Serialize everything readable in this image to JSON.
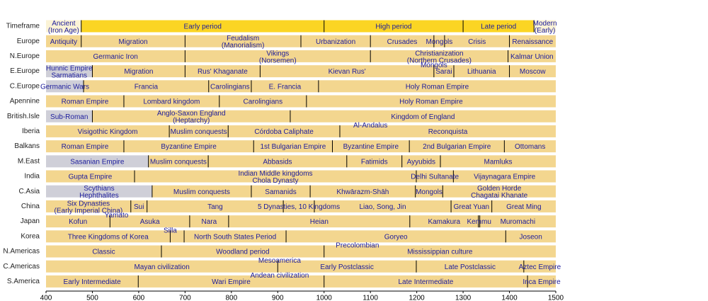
{
  "chart_data": {
    "type": "timeline",
    "xlim": [
      400,
      1500
    ],
    "xticks": [
      400,
      500,
      600,
      700,
      800,
      900,
      1000,
      1100,
      1200,
      1300,
      1400,
      1500
    ],
    "color": "#f3d68f",
    "label_color": "#1c1c9c",
    "rows": [
      {
        "name": "Timeframe",
        "color": "#fbd524",
        "segments": [
          {
            "start": 400,
            "end": 476,
            "label": "Ancient\n(Iron Age)",
            "color": "#fbf3d6"
          },
          {
            "start": 476,
            "end": 1000,
            "label": "Early period"
          },
          {
            "start": 1000,
            "end": 1300,
            "label": "High period"
          },
          {
            "start": 1300,
            "end": 1453,
            "label": "Late period"
          },
          {
            "start": 1453,
            "end": 1500,
            "label": "Modern\n(Early)",
            "color": "#fbf3d6"
          }
        ]
      },
      {
        "name": "Europe",
        "segments": [
          {
            "start": 400,
            "end": 476,
            "label": "Antiquity"
          },
          {
            "start": 476,
            "end": 700,
            "label": "Migration"
          },
          {
            "start": 700,
            "end": 950,
            "label": "Feudalism\n(Manorialism)"
          },
          {
            "start": 950,
            "end": 1100,
            "label": "Urbanization"
          },
          {
            "start": 1100,
            "end": 1237,
            "label": "Crusades"
          },
          {
            "start": 1237,
            "end": 1260,
            "label": "Mongols"
          },
          {
            "start": 1260,
            "end": 1400,
            "label": "Crisis"
          },
          {
            "start": 1400,
            "end": 1500,
            "label": "Renaissance"
          }
        ]
      },
      {
        "name": "N.Europe",
        "segments": [
          {
            "start": 400,
            "end": 700,
            "label": "Germanic Iron"
          },
          {
            "start": 700,
            "end": 1100,
            "label": "Vikings\n(Norsemen)"
          },
          {
            "start": 1100,
            "end": 1397,
            "label": "Christianization\n(Northern Crusades)"
          },
          {
            "start": 1397,
            "end": 1500,
            "label": "Kalmar Union"
          }
        ]
      },
      {
        "name": "E.Europe",
        "segments": [
          {
            "start": 400,
            "end": 500,
            "label": "Hunnic Empire\nSarmatians",
            "color": "#cfcfd8"
          },
          {
            "start": 500,
            "end": 700,
            "label": "Migration"
          },
          {
            "start": 700,
            "end": 862,
            "label": "Rus' Khaganate"
          },
          {
            "start": 862,
            "end": 1237,
            "label": "Kievan Rus'"
          },
          {
            "start": 1237,
            "end": 1280,
            "label": "Sarai"
          },
          {
            "start": 1280,
            "end": 1400,
            "label": "Lithuania"
          },
          {
            "start": 1400,
            "end": 1500,
            "label": "Moscow"
          }
        ],
        "notes": [
          {
            "at": 1237,
            "text": "Mongols"
          }
        ]
      },
      {
        "name": "C.Europe",
        "segments": [
          {
            "start": 400,
            "end": 481,
            "label": "Germanic Wars",
            "color": "#cfcfd8"
          },
          {
            "start": 481,
            "end": 751,
            "label": "Francia"
          },
          {
            "start": 751,
            "end": 843,
            "label": "Carolingians"
          },
          {
            "start": 843,
            "end": 988,
            "label": "E. Francia"
          },
          {
            "start": 988,
            "end": 1500,
            "label": "Holy Roman Empire"
          }
        ]
      },
      {
        "name": "Apennine",
        "segments": [
          {
            "start": 400,
            "end": 568,
            "label": "Roman Empire"
          },
          {
            "start": 568,
            "end": 774,
            "label": "Lombard kingdom"
          },
          {
            "start": 774,
            "end": 962,
            "label": "Carolingians"
          },
          {
            "start": 962,
            "end": 1500,
            "label": "Holy Roman Empire"
          }
        ]
      },
      {
        "name": "British.Isle",
        "segments": [
          {
            "start": 400,
            "end": 500,
            "label": "Sub-Roman",
            "color": "#cfcfd8"
          },
          {
            "start": 500,
            "end": 927,
            "label": "Anglo-Saxon England\n(Heptarchy)"
          },
          {
            "start": 927,
            "end": 1500,
            "label": "Kingdom of England"
          }
        ]
      },
      {
        "name": "Iberia",
        "segments": [
          {
            "start": 400,
            "end": 666,
            "label": "Visigothic Kingdom"
          },
          {
            "start": 666,
            "end": 793,
            "label": "Muslim conquests"
          },
          {
            "start": 793,
            "end": 1034,
            "label": "Córdoba Caliphate"
          },
          {
            "start": 1034,
            "end": 1500,
            "label": "Reconquista"
          }
        ],
        "notes": [
          {
            "at": 1100,
            "text": "Al-Andalus"
          }
        ]
      },
      {
        "name": "Balkans",
        "segments": [
          {
            "start": 400,
            "end": 568,
            "label": "Roman Empire"
          },
          {
            "start": 568,
            "end": 848,
            "label": "Byzantine Empire"
          },
          {
            "start": 848,
            "end": 1018,
            "label": "1st Bulgarian Empire"
          },
          {
            "start": 1018,
            "end": 1184,
            "label": "Byzantine Empire"
          },
          {
            "start": 1184,
            "end": 1389,
            "label": "2nd Bulgarian Empire"
          },
          {
            "start": 1389,
            "end": 1500,
            "label": "Ottomans"
          }
        ]
      },
      {
        "name": "M.East",
        "segments": [
          {
            "start": 400,
            "end": 621,
            "label": "Sasanian Empire",
            "color": "#cfcfd8"
          },
          {
            "start": 621,
            "end": 750,
            "label": "Muslim conquests"
          },
          {
            "start": 750,
            "end": 1049,
            "label": "Abbasids"
          },
          {
            "start": 1049,
            "end": 1168,
            "label": "Fatimids"
          },
          {
            "start": 1168,
            "end": 1251,
            "label": "Ayyubids"
          },
          {
            "start": 1251,
            "end": 1500,
            "label": "Mamluks"
          }
        ]
      },
      {
        "name": "India",
        "segments": [
          {
            "start": 400,
            "end": 591,
            "label": "Gupta Empire"
          },
          {
            "start": 591,
            "end": 1199,
            "label": "Indian Middle kingdoms\nChola Dynasty"
          },
          {
            "start": 1199,
            "end": 1279,
            "label": "Delhi Sultanate"
          },
          {
            "start": 1279,
            "end": 1500,
            "label": "Vijaynagara Empire"
          }
        ]
      },
      {
        "name": "C.Asia",
        "segments": [
          {
            "start": 400,
            "end": 629,
            "label": "Scythians\nHephthalites",
            "color": "#cfcfd8"
          },
          {
            "start": 629,
            "end": 843,
            "label": "Muslim conquests"
          },
          {
            "start": 843,
            "end": 970,
            "label": "Samanids"
          },
          {
            "start": 970,
            "end": 1197,
            "label": "Khwārazm-Shāh"
          },
          {
            "start": 1197,
            "end": 1256,
            "label": "Mongols"
          },
          {
            "start": 1256,
            "end": 1500,
            "label": "Golden Horde\nChagatai Khanate"
          }
        ]
      },
      {
        "name": "China",
        "segments": [
          {
            "start": 400,
            "end": 583,
            "label": "Six Dynasties\n(Early Imperial China)"
          },
          {
            "start": 583,
            "end": 618,
            "label": "Sui"
          },
          {
            "start": 618,
            "end": 912,
            "label": "Tang"
          },
          {
            "start": 912,
            "end": 979,
            "label": "5 Dynasties, 10 Kingdoms"
          },
          {
            "start": 979,
            "end": 1274,
            "label": "Liao, Song, Jin"
          },
          {
            "start": 1274,
            "end": 1362,
            "label": "Great Yuan"
          },
          {
            "start": 1362,
            "end": 1500,
            "label": "Great Ming"
          }
        ]
      },
      {
        "name": "Japan",
        "segments": [
          {
            "start": 400,
            "end": 538,
            "label": "Kofun"
          },
          {
            "start": 538,
            "end": 710,
            "label": "Asuka"
          },
          {
            "start": 710,
            "end": 794,
            "label": "Nara"
          },
          {
            "start": 794,
            "end": 1185,
            "label": "Heian"
          },
          {
            "start": 1185,
            "end": 1333,
            "label": "Kamakura"
          },
          {
            "start": 1333,
            "end": 1336,
            "label": "Kemmu"
          },
          {
            "start": 1336,
            "end": 1500,
            "label": "Muromachi"
          }
        ],
        "notes": [
          {
            "at": 552,
            "text": "Yamato"
          }
        ]
      },
      {
        "name": "Korea",
        "segments": [
          {
            "start": 400,
            "end": 668,
            "label": "Three Kingdoms of Korea"
          },
          {
            "start": 668,
            "end": 698,
            "label": ""
          },
          {
            "start": 698,
            "end": 918,
            "label": "North South States Period"
          },
          {
            "start": 918,
            "end": 1392,
            "label": "Goryeo"
          },
          {
            "start": 1392,
            "end": 1500,
            "label": "Joseon"
          }
        ],
        "notes": [
          {
            "at": 668,
            "text": "Silla"
          }
        ]
      },
      {
        "name": "N.Americas",
        "segments": [
          {
            "start": 400,
            "end": 649,
            "label": "Classic"
          },
          {
            "start": 649,
            "end": 1000,
            "label": "Woodland period"
          },
          {
            "start": 1000,
            "end": 1500,
            "label": "Mississippian culture"
          }
        ],
        "notes": [
          {
            "at": 1072,
            "text": "Precolombian"
          }
        ]
      },
      {
        "name": "C.Americas",
        "segments": [
          {
            "start": 400,
            "end": 900,
            "label": "Mayan civilization"
          },
          {
            "start": 900,
            "end": 1199,
            "label": "Early Postclassic"
          },
          {
            "start": 1199,
            "end": 1431,
            "label": "Late Postclassic"
          },
          {
            "start": 1431,
            "end": 1500,
            "label": "Aztec Empire"
          }
        ],
        "notes": [
          {
            "at": 904,
            "text": "Mesoamerica"
          }
        ]
      },
      {
        "name": "S.America",
        "segments": [
          {
            "start": 400,
            "end": 599,
            "label": "Early Intermediate"
          },
          {
            "start": 599,
            "end": 1000,
            "label": "Wari Empire"
          },
          {
            "start": 1000,
            "end": 1439,
            "label": "Late Intermediate"
          },
          {
            "start": 1439,
            "end": 1500,
            "label": "Inca Empire"
          }
        ],
        "notes": [
          {
            "at": 904,
            "text": "Andean civilization"
          }
        ]
      }
    ]
  }
}
